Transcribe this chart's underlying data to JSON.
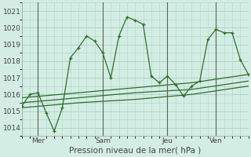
{
  "xlabel": "Pression niveau de la mer( hPa )",
  "background_color": "#d4ede4",
  "grid_color": "#aed4c6",
  "line_color": "#2d6e2d",
  "ylim": [
    1013.5,
    1021.5
  ],
  "yticks": [
    1014,
    1015,
    1016,
    1017,
    1018,
    1019,
    1020,
    1021
  ],
  "day_labels": [
    "Mer",
    "Sam",
    "Jeu",
    "Ven"
  ],
  "day_positions": [
    2,
    10,
    18,
    24
  ],
  "xlim": [
    0,
    28
  ],
  "series1_x": [
    0,
    1,
    2,
    3,
    4,
    5,
    6,
    7,
    8,
    9,
    10,
    11,
    12,
    13,
    14,
    15,
    16,
    17,
    18,
    19,
    20,
    21,
    22,
    23,
    24,
    25,
    26,
    27,
    28
  ],
  "series1_y": [
    1015.3,
    1016.0,
    1016.1,
    1014.9,
    1013.8,
    1015.2,
    1018.2,
    1018.8,
    1019.5,
    1019.2,
    1018.5,
    1017.0,
    1019.5,
    1020.65,
    1020.45,
    1020.2,
    1017.1,
    1016.7,
    1017.1,
    1016.6,
    1015.9,
    1016.5,
    1016.8,
    1019.3,
    1019.9,
    1019.7,
    1019.7,
    1018.1,
    1017.2
  ],
  "series2_x": [
    0,
    7,
    14,
    21,
    28
  ],
  "series2_y": [
    1015.8,
    1016.1,
    1016.4,
    1016.7,
    1017.2
  ],
  "series3_x": [
    0,
    7,
    14,
    21,
    28
  ],
  "series3_y": [
    1015.5,
    1015.8,
    1016.1,
    1016.3,
    1016.8
  ],
  "series4_x": [
    0,
    7,
    14,
    21,
    28
  ],
  "series4_y": [
    1015.2,
    1015.5,
    1015.7,
    1016.0,
    1016.5
  ],
  "vline_positions": [
    2,
    10,
    18,
    24
  ],
  "vline_color": "#556655",
  "tick_color": "#444444",
  "tick_fontsize": 6.5,
  "xlabel_fontsize": 7.5
}
